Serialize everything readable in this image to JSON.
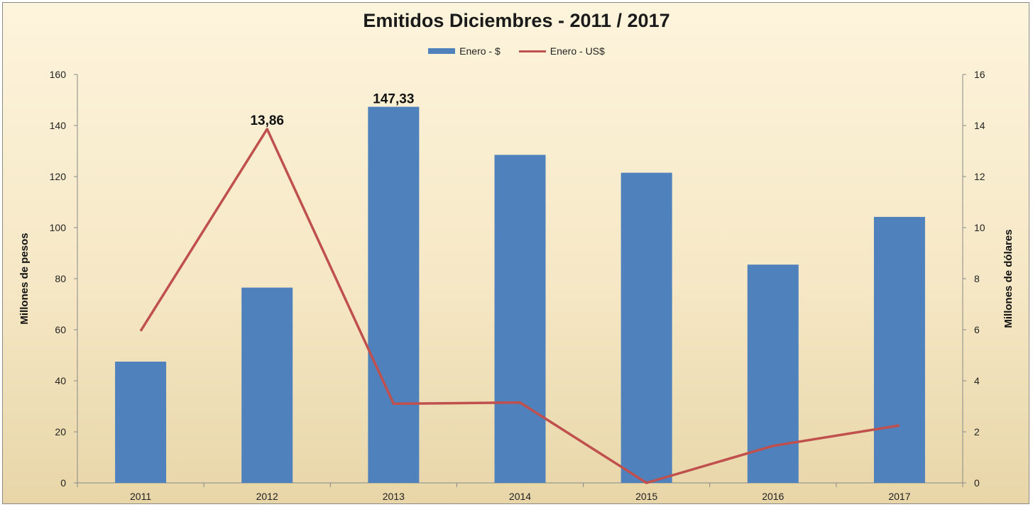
{
  "chart_data": {
    "type": "bar",
    "title": "Emitidos Diciembres - 2011 / 2017",
    "categories": [
      "2011",
      "2012",
      "2013",
      "2014",
      "2015",
      "2016",
      "2017"
    ],
    "series": [
      {
        "name": "Enero - $",
        "type": "bar",
        "axis": "left",
        "color": "#4f81bd",
        "values": [
          47.5,
          76.5,
          147.33,
          128.5,
          121.5,
          85.5,
          104.2
        ]
      },
      {
        "name": "Enero - US$",
        "type": "line",
        "axis": "right",
        "color": "#c0504d",
        "values": [
          5.95,
          13.86,
          3.1,
          3.15,
          0.0,
          1.45,
          2.25
        ]
      }
    ],
    "data_labels": [
      {
        "series": "Enero - $",
        "category": "2013",
        "text": "147,33"
      },
      {
        "series": "Enero - US$",
        "category": "2012",
        "text": "13,86"
      }
    ],
    "ylabel": "Millones de pesos",
    "y2label": "Millones de dólares",
    "ylim": [
      0,
      160
    ],
    "y2lim": [
      0,
      16
    ],
    "yticks": [
      "0",
      "20",
      "40",
      "60",
      "80",
      "100",
      "120",
      "140",
      "160"
    ],
    "y2ticks": [
      "0",
      "2",
      "4",
      "6",
      "8",
      "10",
      "12",
      "14",
      "16"
    ],
    "legend_position": "top-center",
    "grid": false
  }
}
